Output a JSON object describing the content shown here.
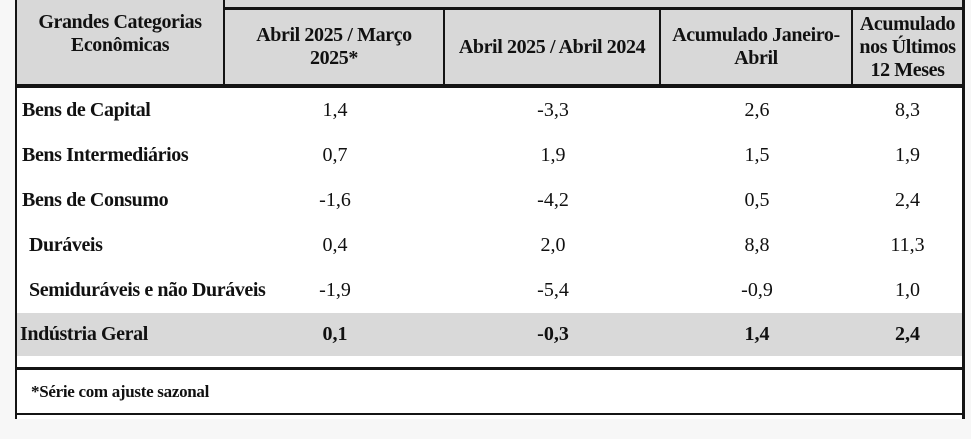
{
  "table": {
    "row_header_title": "Grandes Categorias Econômicas",
    "columns": [
      "Abril 2025 / Março 2025*",
      "Abril 2025 / Abril 2024",
      "Acumulado Janeiro-Abril",
      "Acumulado nos Últimos 12 Meses"
    ],
    "rows": [
      {
        "label": "Bens de Capital",
        "values": [
          "1,4",
          "-3,3",
          "2,6",
          "8,3"
        ]
      },
      {
        "label": "Bens Intermediários",
        "values": [
          "0,7",
          "1,9",
          "1,5",
          "1,9"
        ]
      },
      {
        "label": "Bens de Consumo",
        "values": [
          "-1,6",
          "-4,2",
          "0,5",
          "2,4"
        ]
      },
      {
        "label": "Duráveis",
        "values": [
          "0,4",
          "2,0",
          "8,8",
          "11,3"
        ]
      },
      {
        "label": "Semiduráveis e não Duráveis",
        "values": [
          "-1,9",
          "-5,4",
          "-0,9",
          "1,0"
        ]
      },
      {
        "label": "Indústria Geral",
        "values": [
          "0,1",
          "-0,3",
          "1,4",
          "2,4"
        ]
      }
    ],
    "footnote": "*Série com ajuste sazonal"
  },
  "colors": {
    "header_bg": "#d8d8d8",
    "highlight_row_bg": "#d9d9d9",
    "border": "#141414",
    "page_bg": "#f7f7f7"
  },
  "chart_data": {
    "type": "table",
    "title": "Grandes Categorias Econômicas — variação (%)",
    "row_header": "Grandes Categorias Econômicas",
    "columns": [
      "Abril 2025 / Março 2025*",
      "Abril 2025 / Abril 2024",
      "Acumulado Janeiro-Abril",
      "Acumulado nos Últimos 12 Meses"
    ],
    "rows": [
      {
        "category": "Bens de Capital",
        "values": [
          1.4,
          -3.3,
          2.6,
          8.3
        ]
      },
      {
        "category": "Bens Intermediários",
        "values": [
          0.7,
          1.9,
          1.5,
          1.9
        ]
      },
      {
        "category": "Bens de Consumo",
        "values": [
          -1.6,
          -4.2,
          0.5,
          2.4
        ]
      },
      {
        "category": "Duráveis",
        "values": [
          0.4,
          2.0,
          8.8,
          11.3
        ]
      },
      {
        "category": "Semiduráveis e não Duráveis",
        "values": [
          -1.9,
          -5.4,
          -0.9,
          1.0
        ]
      },
      {
        "category": "Indústria Geral",
        "values": [
          0.1,
          -0.3,
          1.4,
          2.4
        ]
      }
    ],
    "footnote": "*Série com ajuste sazonal",
    "layout": {
      "highlighted_row": "Indústria Geral",
      "decimal_separator": "comma"
    }
  }
}
